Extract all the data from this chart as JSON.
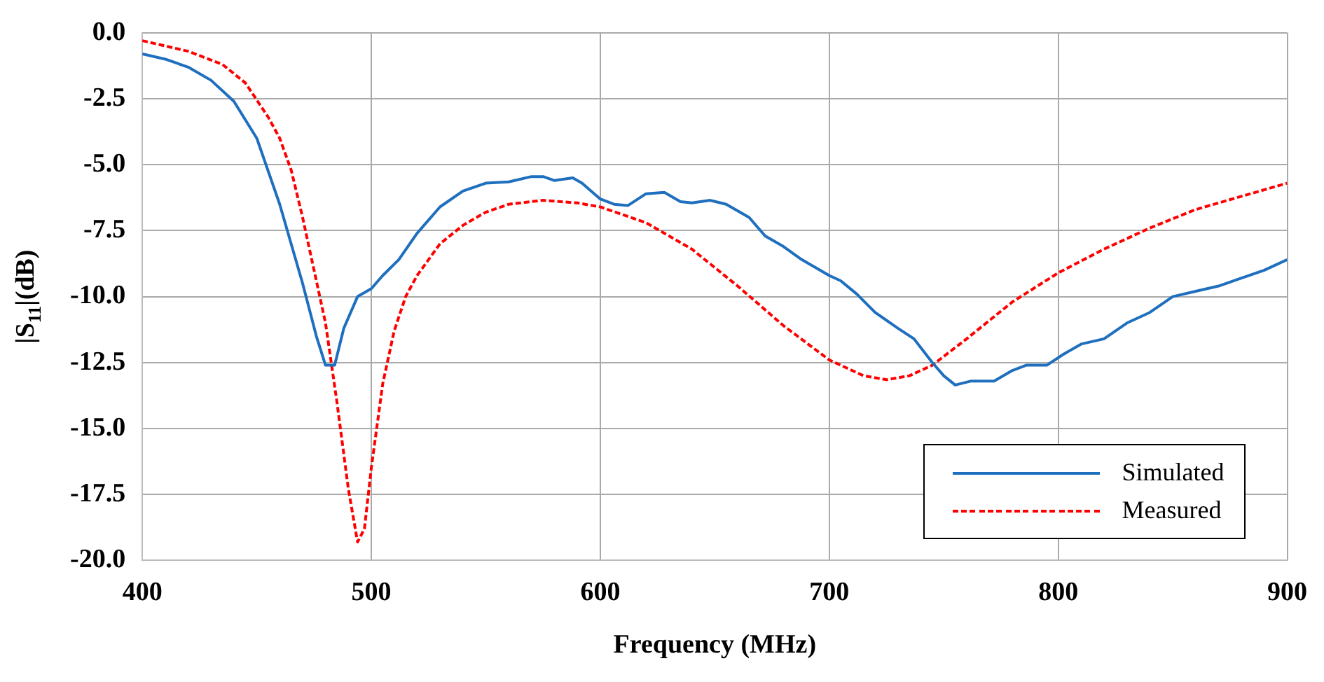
{
  "chart_data": {
    "type": "line",
    "xlabel": "Frequency (MHz)",
    "ylabel": "|S$_{11}$|(dB)",
    "xlim": [
      400,
      900
    ],
    "xticks": [
      400,
      500,
      600,
      700,
      800,
      900
    ],
    "ylim": [
      -20,
      0
    ],
    "yticks": [
      {
        "value": 0,
        "label": "0.0"
      },
      {
        "value": -2.5,
        "label": "-2.5"
      },
      {
        "value": -5,
        "label": "-5.0"
      },
      {
        "value": -7.5,
        "label": "-7.5"
      },
      {
        "value": -10,
        "label": "-10.0"
      },
      {
        "value": -12.5,
        "label": "-12.5"
      },
      {
        "value": -15,
        "label": "-15.0"
      },
      {
        "value": -17.5,
        "label": "-17.5"
      },
      {
        "value": -20,
        "label": "-20.0"
      }
    ],
    "grid": true,
    "legend": "bottom right",
    "marker": "none",
    "series": [
      {
        "name": "Simulated",
        "color": "#1f6fbf",
        "line_style": "solid",
        "x": [
          400,
          410,
          420,
          430,
          440,
          450,
          460,
          470,
          476,
          480,
          484,
          488,
          494,
          500,
          505,
          512,
          520,
          530,
          540,
          550,
          560,
          570,
          575,
          580,
          588,
          592,
          600,
          606,
          612,
          620,
          628,
          635,
          640,
          648,
          655,
          665,
          672,
          680,
          688,
          700,
          705,
          712,
          720,
          730,
          737,
          745,
          750,
          755,
          762,
          772,
          780,
          786,
          795,
          802,
          810,
          820,
          830,
          840,
          850,
          860,
          870,
          880,
          890,
          900
        ],
        "values": [
          -0.8,
          -1.0,
          -1.3,
          -1.8,
          -2.6,
          -4.0,
          -6.5,
          -9.5,
          -11.5,
          -12.6,
          -12.6,
          -11.2,
          -10.0,
          -9.7,
          -9.2,
          -8.6,
          -7.6,
          -6.6,
          -6.0,
          -5.7,
          -5.65,
          -5.45,
          -5.45,
          -5.6,
          -5.5,
          -5.7,
          -6.3,
          -6.5,
          -6.55,
          -6.1,
          -6.05,
          -6.4,
          -6.45,
          -6.35,
          -6.5,
          -7.0,
          -7.7,
          -8.1,
          -8.6,
          -9.2,
          -9.4,
          -9.9,
          -10.6,
          -11.2,
          -11.6,
          -12.5,
          -13.0,
          -13.35,
          -13.2,
          -13.2,
          -12.8,
          -12.6,
          -12.6,
          -12.2,
          -11.8,
          -11.6,
          -11.0,
          -10.6,
          -10.0,
          -9.8,
          -9.6,
          -9.3,
          -9.0,
          -8.6
        ]
      },
      {
        "name": "Measured",
        "color": "#ff0000",
        "line_style": "dashed",
        "x": [
          400,
          420,
          435,
          445,
          455,
          460,
          465,
          470,
          475,
          480,
          485,
          490,
          494,
          497,
          500,
          505,
          510,
          515,
          520,
          530,
          540,
          550,
          560,
          575,
          590,
          600,
          620,
          640,
          660,
          680,
          700,
          715,
          725,
          735,
          745,
          760,
          780,
          800,
          820,
          840,
          860,
          880,
          900
        ],
        "values": [
          -0.3,
          -0.7,
          -1.2,
          -1.9,
          -3.2,
          -4.0,
          -5.2,
          -7.0,
          -9.0,
          -11.0,
          -14.0,
          -17.3,
          -19.3,
          -18.8,
          -16.5,
          -13.3,
          -11.3,
          -10.0,
          -9.2,
          -8.0,
          -7.3,
          -6.8,
          -6.5,
          -6.35,
          -6.45,
          -6.6,
          -7.2,
          -8.2,
          -9.6,
          -11.1,
          -12.4,
          -13.0,
          -13.15,
          -13.0,
          -12.6,
          -11.6,
          -10.2,
          -9.1,
          -8.2,
          -7.4,
          -6.7,
          -6.2,
          -5.7
        ]
      }
    ]
  }
}
